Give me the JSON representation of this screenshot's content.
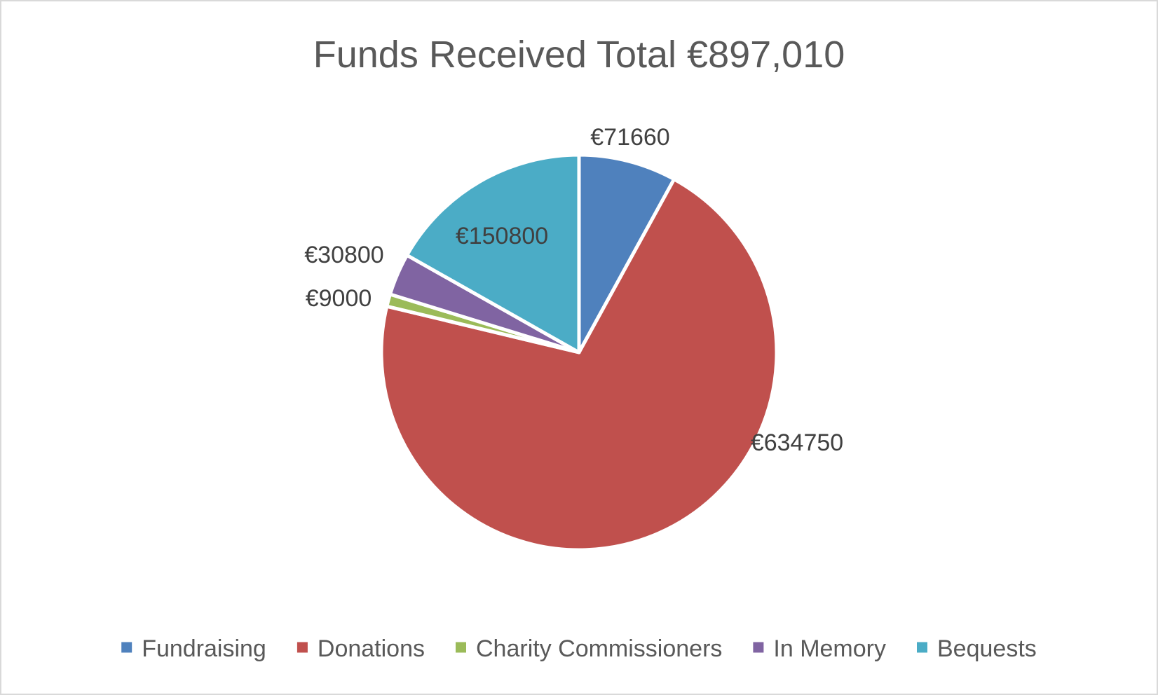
{
  "chart_data": {
    "type": "pie",
    "title": "Funds Received Total €897,010",
    "start_angle_deg": 0,
    "direction": "clockwise",
    "legend_position": "bottom",
    "slices": [
      {
        "name": "Fundraising",
        "value": 71660,
        "label": "€71660",
        "color": "#4f81bd"
      },
      {
        "name": "Donations",
        "value": 634750,
        "label": "€634750",
        "color": "#c0504d"
      },
      {
        "name": "Charity Commissioners",
        "value": 9000,
        "label": "€9000",
        "color": "#9bbb59"
      },
      {
        "name": "In Memory",
        "value": 30800,
        "label": "€30800",
        "color": "#8064a2"
      },
      {
        "name": "Bequests",
        "value": 150800,
        "label": "€150800",
        "color": "#4bacc6"
      }
    ]
  }
}
